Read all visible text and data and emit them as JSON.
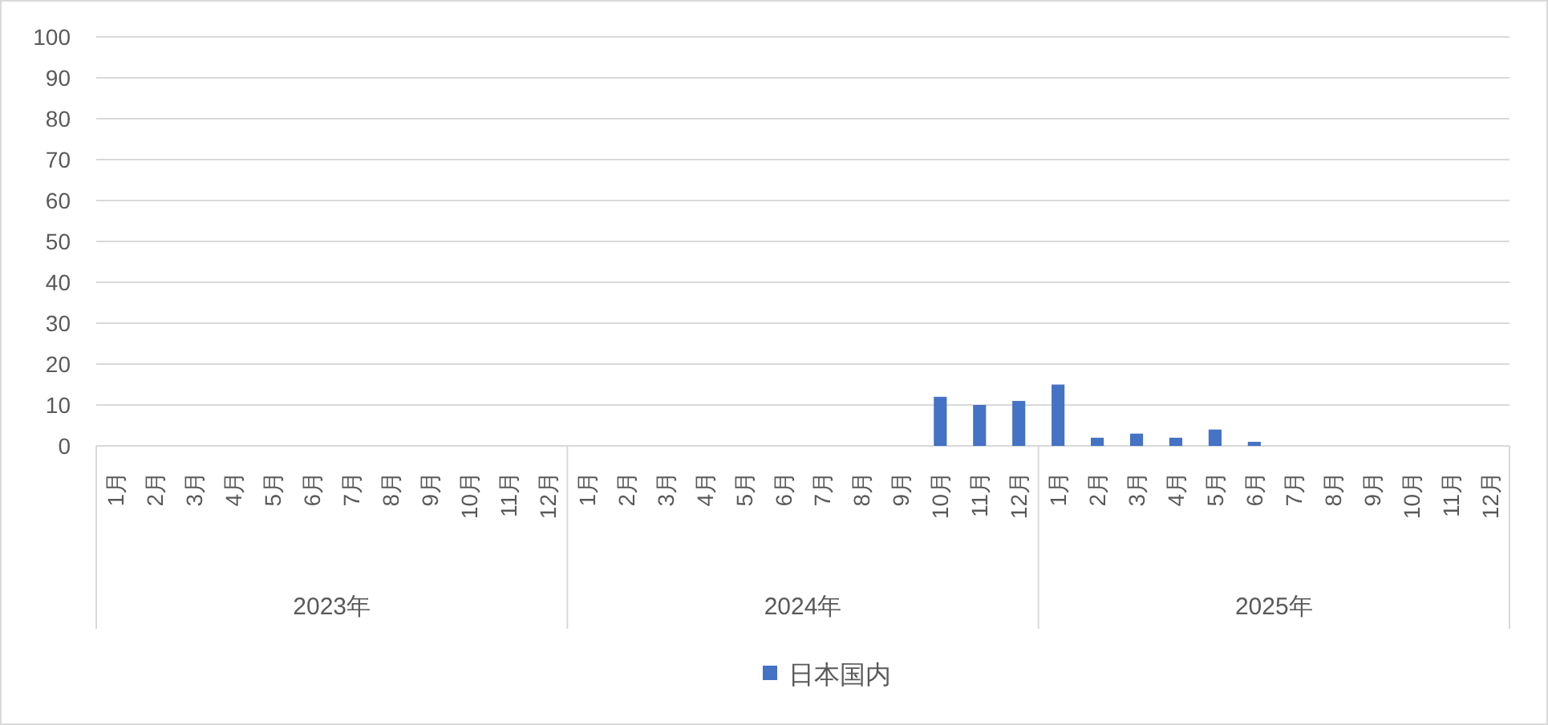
{
  "chart_data": {
    "type": "bar",
    "categories": [
      "1月",
      "2月",
      "3月",
      "4月",
      "5月",
      "6月",
      "7月",
      "8月",
      "9月",
      "10月",
      "11月",
      "12月",
      "1月",
      "2月",
      "3月",
      "4月",
      "5月",
      "6月",
      "7月",
      "8月",
      "9月",
      "10月",
      "11月",
      "12月",
      "1月",
      "2月",
      "3月",
      "4月",
      "5月",
      "6月",
      "7月",
      "8月",
      "9月",
      "10月",
      "11月",
      "12月"
    ],
    "annotations": [
      "2023年",
      "2024年",
      "2025年"
    ],
    "series": [
      {
        "name": "日本国内",
        "color": "#4472c4",
        "values": [
          null,
          null,
          null,
          null,
          null,
          null,
          null,
          null,
          null,
          null,
          null,
          null,
          null,
          null,
          null,
          null,
          null,
          null,
          null,
          null,
          null,
          12,
          10,
          11,
          15,
          2,
          3,
          2,
          4,
          1,
          null,
          null,
          null,
          null,
          null,
          null
        ]
      }
    ],
    "ylim": [
      0,
      100
    ],
    "yticks": [
      0,
      10,
      20,
      30,
      40,
      50,
      60,
      70,
      80,
      90,
      100
    ],
    "grid": "y",
    "legend": "bottom"
  }
}
